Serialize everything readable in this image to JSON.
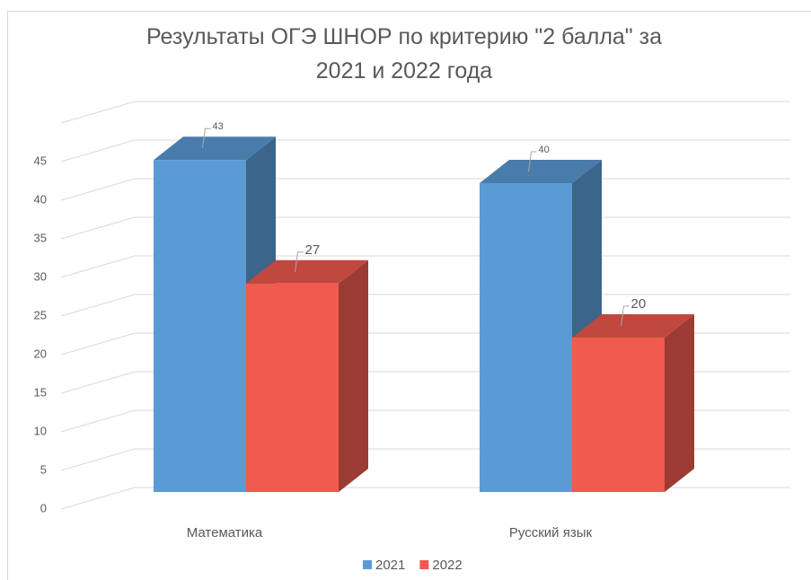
{
  "chart_data": {
    "type": "bar3d",
    "title": "Результаты ОГЭ ШНОР по критерию \"2 балла\" за 2021 и 2022 года",
    "categories": [
      "Математика",
      "Русский язык"
    ],
    "series": [
      {
        "name": "2021",
        "color": "#5b9bd5",
        "values": [
          43,
          40
        ]
      },
      {
        "name": "2022",
        "color": "#f05a4f",
        "values": [
          27,
          20
        ]
      }
    ],
    "ylim": [
      0,
      50
    ],
    "yticks": [
      0,
      5,
      10,
      15,
      20,
      25,
      30,
      35,
      40,
      45
    ],
    "grid": true,
    "legend": "bottom"
  }
}
